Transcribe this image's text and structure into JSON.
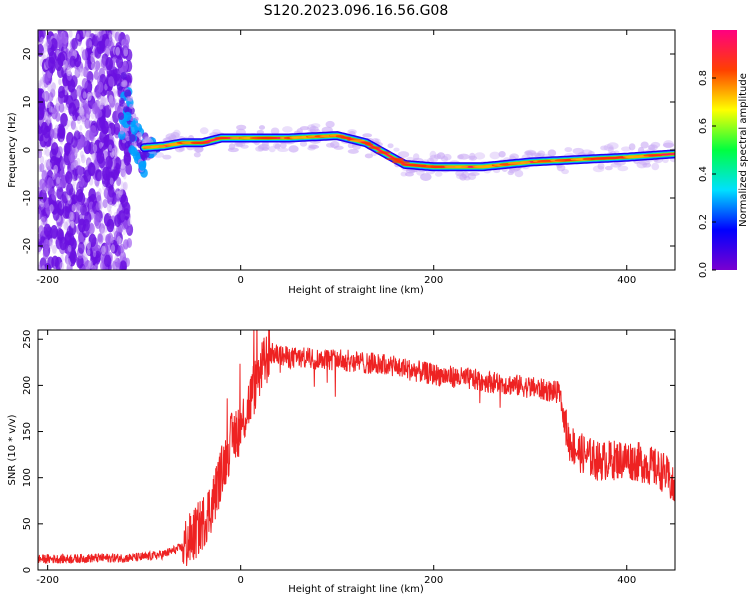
{
  "title": "S120.2023.096.16.56.G08",
  "colors": {
    "snr_line": "#ee2222",
    "axis": "#000000",
    "colorbar_stops": [
      "#7a00d0",
      "#0000ff",
      "#00e0ff",
      "#00ff40",
      "#ffff00",
      "#ff4000",
      "#ff0080"
    ]
  },
  "chart_data": [
    {
      "type": "heatmap",
      "title": "",
      "xlabel": "Height of straight line (km)",
      "ylabel": "Frequency (Hz)",
      "xlim": [
        -210,
        450
      ],
      "ylim": [
        -25,
        25
      ],
      "xticks": [
        -200,
        0,
        200,
        400
      ],
      "yticks": [
        -20,
        -10,
        0,
        10,
        20
      ],
      "colorbar": {
        "label": "Normalized spectral amplitude",
        "range": [
          0,
          1
        ],
        "ticks": [
          "0.0",
          "0.2",
          "0.4",
          "0.6",
          "0.8"
        ]
      },
      "ridge": {
        "x": [
          -100,
          -80,
          -60,
          -40,
          -20,
          0,
          50,
          100,
          130,
          170,
          200,
          250,
          300,
          350,
          400,
          450
        ],
        "y": [
          0.5,
          0.8,
          1.5,
          1.5,
          2.5,
          2.5,
          2.5,
          3.0,
          1.5,
          -3.0,
          -3.5,
          -3.5,
          -2.5,
          -2.0,
          -1.5,
          -0.8
        ]
      },
      "noise_region": [
        -210,
        -115
      ]
    },
    {
      "type": "line",
      "title": "",
      "xlabel": "Height of straight line (km)",
      "ylabel": "SNR (10 * v/v)",
      "xlim": [
        -210,
        450
      ],
      "ylim": [
        0,
        260
      ],
      "xticks": [
        -200,
        0,
        200,
        400
      ],
      "yticks": [
        0,
        50,
        100,
        150,
        200,
        250
      ],
      "series": [
        {
          "name": "",
          "x": [
            -210,
            -180,
            -150,
            -120,
            -100,
            -80,
            -60,
            -50,
            -40,
            -30,
            -20,
            -10,
            0,
            10,
            20,
            30,
            50,
            100,
            150,
            200,
            250,
            300,
            330,
            340,
            350,
            370,
            400,
            420,
            440,
            450
          ],
          "y": [
            12,
            12,
            13,
            13,
            14,
            17,
            25,
            35,
            50,
            70,
            105,
            140,
            155,
            185,
            215,
            235,
            230,
            228,
            222,
            212,
            205,
            198,
            192,
            140,
            128,
            118,
            120,
            115,
            105,
            85
          ]
        }
      ]
    }
  ]
}
